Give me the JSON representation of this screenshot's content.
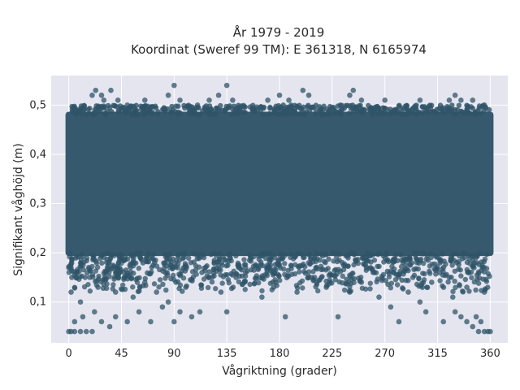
{
  "chart_data": {
    "type": "scatter",
    "title": [
      "År 1979 - 2019",
      "Koordinat (Sweref 99 TM): E 361318, N 6165974"
    ],
    "xlabel": "Vågriktning (grader)",
    "ylabel": "Signifikant våghöjd (m)",
    "xlim": [
      -15,
      375
    ],
    "ylim": [
      0.017,
      0.56
    ],
    "xticks": [
      0,
      45,
      90,
      135,
      180,
      225,
      270,
      315,
      360
    ],
    "xtick_labels": [
      "0",
      "45",
      "90",
      "135",
      "180",
      "225",
      "270",
      "315",
      "360"
    ],
    "yticks": [
      0.1,
      0.2,
      0.3,
      0.4,
      0.5
    ],
    "ytick_labels": [
      "0,1",
      "0,2",
      "0,3",
      "0,4",
      "0,5"
    ],
    "grid": true,
    "marker_color": "#2f5468",
    "plot_background": "#e5e5f0",
    "dense_band": {
      "x_range": [
        0,
        360
      ],
      "y_range": [
        0.2,
        0.48
      ]
    },
    "points": [
      {
        "x": 0,
        "y": 0.04
      },
      {
        "x": 2,
        "y": 0.04
      },
      {
        "x": 5,
        "y": 0.04
      },
      {
        "x": 10,
        "y": 0.04
      },
      {
        "x": 15,
        "y": 0.04
      },
      {
        "x": 20,
        "y": 0.04
      },
      {
        "x": 5,
        "y": 0.06
      },
      {
        "x": 12,
        "y": 0.07
      },
      {
        "x": 22,
        "y": 0.08
      },
      {
        "x": 28,
        "y": 0.06
      },
      {
        "x": 35,
        "y": 0.05
      },
      {
        "x": 40,
        "y": 0.07
      },
      {
        "x": 50,
        "y": 0.06
      },
      {
        "x": 60,
        "y": 0.08
      },
      {
        "x": 70,
        "y": 0.06
      },
      {
        "x": 80,
        "y": 0.09
      },
      {
        "x": 90,
        "y": 0.06
      },
      {
        "x": 95,
        "y": 0.08
      },
      {
        "x": 105,
        "y": 0.07
      },
      {
        "x": 112,
        "y": 0.08
      },
      {
        "x": 135,
        "y": 0.08
      },
      {
        "x": 185,
        "y": 0.07
      },
      {
        "x": 230,
        "y": 0.07
      },
      {
        "x": 265,
        "y": 0.11
      },
      {
        "x": 275,
        "y": 0.09
      },
      {
        "x": 282,
        "y": 0.06
      },
      {
        "x": 300,
        "y": 0.1
      },
      {
        "x": 305,
        "y": 0.08
      },
      {
        "x": 320,
        "y": 0.06
      },
      {
        "x": 330,
        "y": 0.08
      },
      {
        "x": 335,
        "y": 0.07
      },
      {
        "x": 340,
        "y": 0.06
      },
      {
        "x": 345,
        "y": 0.05
      },
      {
        "x": 350,
        "y": 0.04
      },
      {
        "x": 355,
        "y": 0.04
      },
      {
        "x": 358,
        "y": 0.04
      },
      {
        "x": 360,
        "y": 0.04
      },
      {
        "x": 348,
        "y": 0.07
      },
      {
        "x": 352,
        "y": 0.06
      },
      {
        "x": 328,
        "y": 0.11
      },
      {
        "x": 25,
        "y": 0.13
      },
      {
        "x": 40,
        "y": 0.12
      },
      {
        "x": 55,
        "y": 0.11
      },
      {
        "x": 65,
        "y": 0.14
      },
      {
        "x": 75,
        "y": 0.12
      },
      {
        "x": 85,
        "y": 0.1
      },
      {
        "x": 100,
        "y": 0.13
      },
      {
        "x": 120,
        "y": 0.15
      },
      {
        "x": 130,
        "y": 0.12
      },
      {
        "x": 150,
        "y": 0.14
      },
      {
        "x": 165,
        "y": 0.11
      },
      {
        "x": 175,
        "y": 0.13
      },
      {
        "x": 195,
        "y": 0.12
      },
      {
        "x": 210,
        "y": 0.15
      },
      {
        "x": 220,
        "y": 0.13
      },
      {
        "x": 240,
        "y": 0.12
      },
      {
        "x": 250,
        "y": 0.14
      },
      {
        "x": 260,
        "y": 0.16
      },
      {
        "x": 290,
        "y": 0.12
      },
      {
        "x": 310,
        "y": 0.14
      },
      {
        "x": 2,
        "y": 0.12
      },
      {
        "x": 10,
        "y": 0.1
      },
      {
        "x": 18,
        "y": 0.15
      },
      {
        "x": 355,
        "y": 0.12
      },
      {
        "x": 340,
        "y": 0.13
      },
      {
        "x": 325,
        "y": 0.15
      },
      {
        "x": 145,
        "y": 0.17
      },
      {
        "x": 205,
        "y": 0.18
      },
      {
        "x": 20,
        "y": 0.52
      },
      {
        "x": 23,
        "y": 0.53
      },
      {
        "x": 28,
        "y": 0.52
      },
      {
        "x": 30,
        "y": 0.51
      },
      {
        "x": 36,
        "y": 0.53
      },
      {
        "x": 42,
        "y": 0.51
      },
      {
        "x": 65,
        "y": 0.51
      },
      {
        "x": 85,
        "y": 0.52
      },
      {
        "x": 90,
        "y": 0.54
      },
      {
        "x": 95,
        "y": 0.51
      },
      {
        "x": 120,
        "y": 0.51
      },
      {
        "x": 128,
        "y": 0.52
      },
      {
        "x": 135,
        "y": 0.54
      },
      {
        "x": 140,
        "y": 0.51
      },
      {
        "x": 170,
        "y": 0.51
      },
      {
        "x": 180,
        "y": 0.52
      },
      {
        "x": 188,
        "y": 0.51
      },
      {
        "x": 200,
        "y": 0.53
      },
      {
        "x": 205,
        "y": 0.52
      },
      {
        "x": 240,
        "y": 0.52
      },
      {
        "x": 243,
        "y": 0.53
      },
      {
        "x": 250,
        "y": 0.51
      },
      {
        "x": 270,
        "y": 0.51
      },
      {
        "x": 300,
        "y": 0.51
      },
      {
        "x": 325,
        "y": 0.51
      },
      {
        "x": 330,
        "y": 0.52
      },
      {
        "x": 335,
        "y": 0.51
      },
      {
        "x": 345,
        "y": 0.51
      },
      {
        "x": 355,
        "y": 0.5
      },
      {
        "x": 5,
        "y": 0.49
      },
      {
        "x": 50,
        "y": 0.5
      },
      {
        "x": 110,
        "y": 0.5
      }
    ]
  }
}
